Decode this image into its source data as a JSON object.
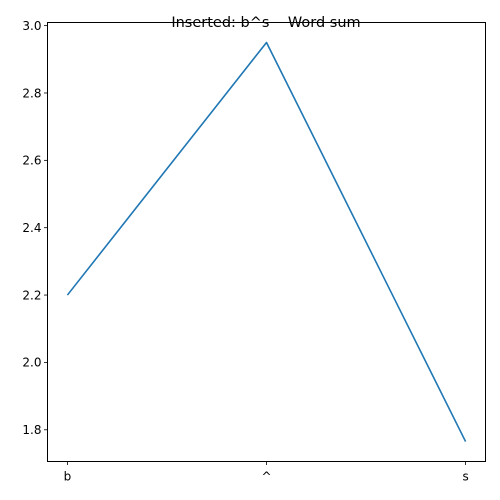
{
  "chart_data": {
    "type": "line",
    "title": "Inserted: b^s    Word sum",
    "xlabel": "",
    "ylabel": "",
    "categories": [
      "b",
      "^",
      "s"
    ],
    "series": [
      {
        "values": [
          2.2,
          2.95,
          1.765
        ],
        "color": "#1f77b4"
      }
    ],
    "yticks": [
      1.8,
      2.0,
      2.2,
      2.4,
      2.6,
      2.8,
      3.0
    ],
    "ytick_labels": [
      "1.8",
      "2.0",
      "2.2",
      "2.4",
      "2.6",
      "2.8",
      "3.0"
    ],
    "ylim": [
      1.7058,
      3.0093
    ],
    "grid": false,
    "legend": "none"
  }
}
